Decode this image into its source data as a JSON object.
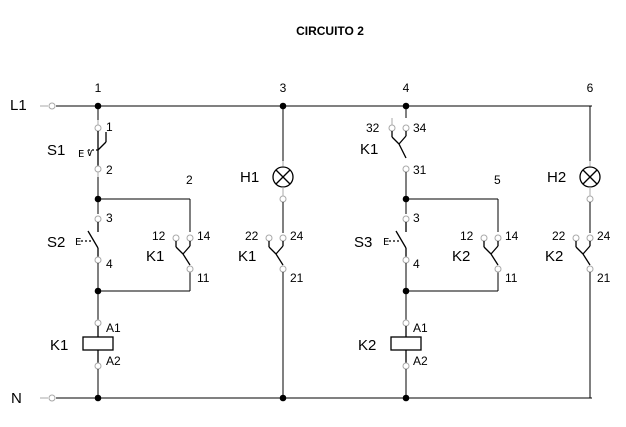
{
  "title": "CIRCUITO 2",
  "rails": {
    "phase": "L1",
    "neutral": "N"
  },
  "branch_numbers": [
    "1",
    "3",
    "4",
    "6"
  ],
  "node_numbers": [
    "2",
    "5"
  ],
  "components": {
    "s1": {
      "name": "S1",
      "t_top": "1",
      "t_bottom": "2"
    },
    "s2": {
      "name": "S2",
      "t_top": "3",
      "t_bottom": "4"
    },
    "s3": {
      "name": "S3",
      "t_top": "3",
      "t_bottom": "4"
    },
    "k1_seal": {
      "name": "K1",
      "t_nc": "12",
      "t_no": "14",
      "t_com": "11"
    },
    "k2_seal": {
      "name": "K2",
      "t_nc": "12",
      "t_no": "14",
      "t_com": "11"
    },
    "k1_lamp_contact": {
      "name": "K1",
      "t_nc": "22",
      "t_no": "24",
      "t_com": "21"
    },
    "k2_lamp_contact": {
      "name": "K2",
      "t_nc": "22",
      "t_no": "24",
      "t_com": "21"
    },
    "k1_interlock": {
      "name": "K1",
      "t_left": "32",
      "t_right": "34",
      "t_bottom": "31"
    },
    "k1_coil": {
      "name": "K1",
      "t_top": "A1",
      "t_bottom": "A2"
    },
    "k2_coil": {
      "name": "K2",
      "t_top": "A1",
      "t_bottom": "A2"
    },
    "h1": {
      "name": "H1"
    },
    "h2": {
      "name": "H2"
    }
  },
  "icons": {
    "actuator": "pushbutton-actuator-icon",
    "lamp": "indicator-lamp-icon",
    "coil": "relay-coil-icon"
  }
}
